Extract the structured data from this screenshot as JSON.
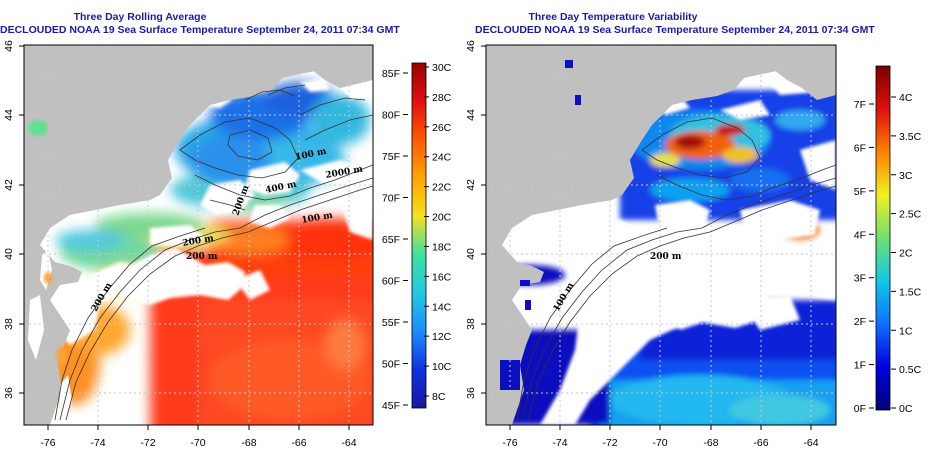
{
  "panels": [
    {
      "title_line1": "Three Day Rolling Average",
      "title_line2": "DECLOUDED NOAA 19 Sea Surface Temperature September 24, 2011 07:34 GMT",
      "x_ticks": [
        "-76",
        "-74",
        "-72",
        "-70",
        "-68",
        "-66",
        "-64"
      ],
      "y_ticks": [
        "36",
        "38",
        "40",
        "42",
        "44",
        "46"
      ],
      "contour_labels": [
        "100 m",
        "200 m",
        "2000 m",
        "400 m",
        "200 m",
        "200 m",
        "200 m",
        "100 m"
      ],
      "colorbar_f": [
        "85F",
        "80F",
        "75F",
        "70F",
        "65F",
        "60F",
        "55F",
        "50F",
        "45F"
      ],
      "colorbar_c": [
        "30C",
        "28C",
        "26C",
        "24C",
        "22C",
        "20C",
        "18C",
        "16C",
        "14C",
        "12C",
        "10C",
        "8C"
      ]
    },
    {
      "title_line1": "Three Day Temperature Variability",
      "title_line2": "DECLOUDED NOAA 19 Sea Surface Temperature September 24, 2011 07:34 GMT",
      "x_ticks": [
        "-76",
        "-74",
        "-72",
        "-70",
        "-68",
        "-66",
        "-64"
      ],
      "y_ticks": [
        "36",
        "38",
        "40",
        "42",
        "44",
        "46"
      ],
      "contour_labels": [
        "200 m",
        "100 m"
      ],
      "colorbar_f": [
        "7F",
        "6F",
        "5F",
        "4F",
        "3F",
        "2F",
        "1F",
        "0F"
      ],
      "colorbar_c": [
        "4C",
        "3.5C",
        "3C",
        "2.5C",
        "2C",
        "1.5C",
        "1C",
        "0.5C",
        "0C"
      ]
    }
  ],
  "colors": {
    "land": "#c0c0c0",
    "title": "#1a1aa8",
    "sst_scale": [
      "#9b0000",
      "#e01010",
      "#ff5a00",
      "#ffa500",
      "#f5e020",
      "#40e0a0",
      "#20c8e0",
      "#1e8cff",
      "#1030e0",
      "#1818a0"
    ],
    "var_scale": [
      "#7a0000",
      "#e01010",
      "#ff8000",
      "#f0f020",
      "#70e070",
      "#10c8e8",
      "#1070ff",
      "#0000e0",
      "#00007a"
    ]
  }
}
